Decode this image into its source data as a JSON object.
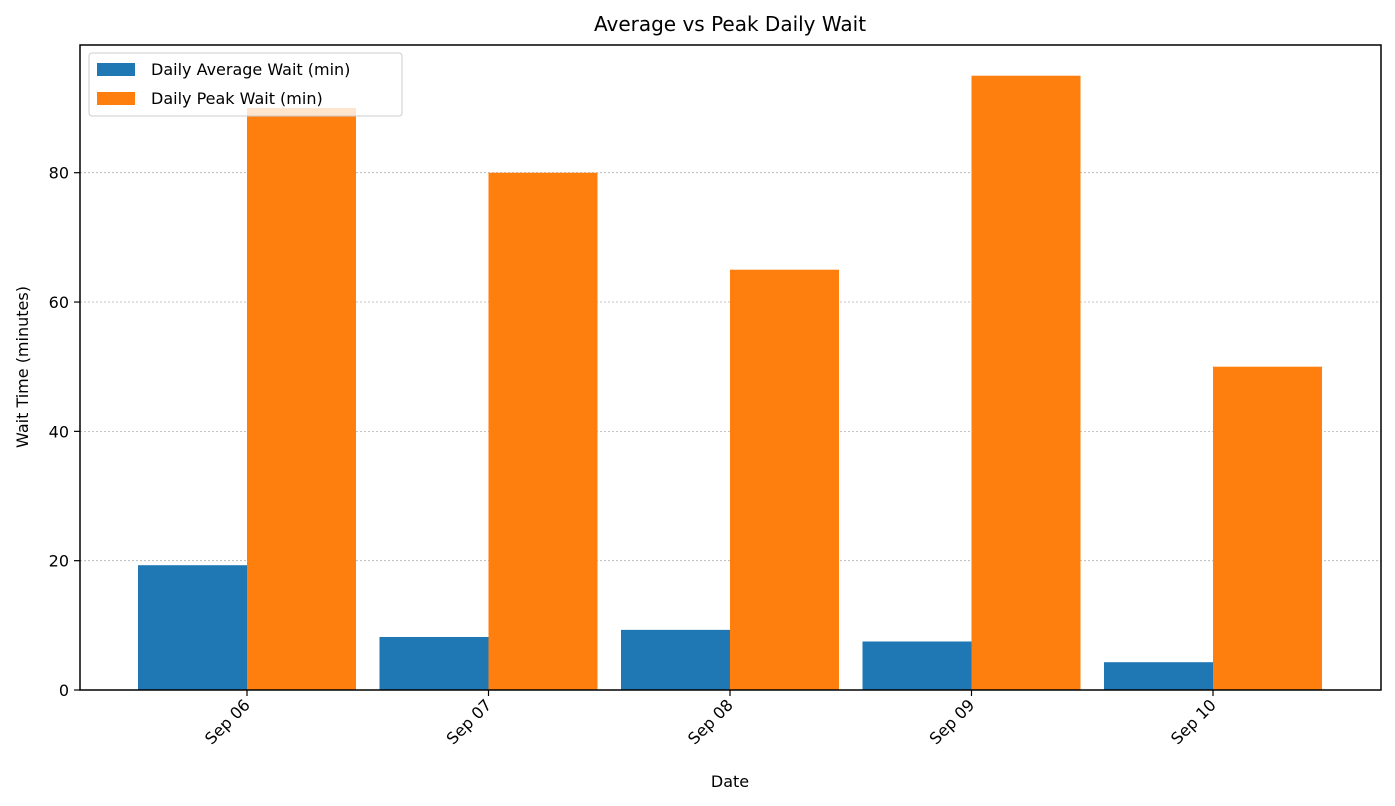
{
  "chart_data": {
    "type": "bar",
    "title": "Average vs Peak Daily Wait",
    "xlabel": "Date",
    "ylabel": "Wait Time (minutes)",
    "categories": [
      "Sep 06",
      "Sep 07",
      "Sep 08",
      "Sep 09",
      "Sep 10"
    ],
    "series": [
      {
        "name": "Daily Average Wait (min)",
        "color": "#1f77b4",
        "values": [
          19.3,
          8.2,
          9.3,
          7.5,
          4.3
        ]
      },
      {
        "name": "Daily Peak Wait (min)",
        "color": "#ff7f0e",
        "values": [
          90,
          80,
          65,
          95,
          50
        ]
      }
    ],
    "ylim": [
      0,
      99.75
    ],
    "yticks": [
      0,
      20,
      40,
      60,
      80
    ],
    "grid": "horizontal dotted",
    "legend_position": "top-left"
  }
}
